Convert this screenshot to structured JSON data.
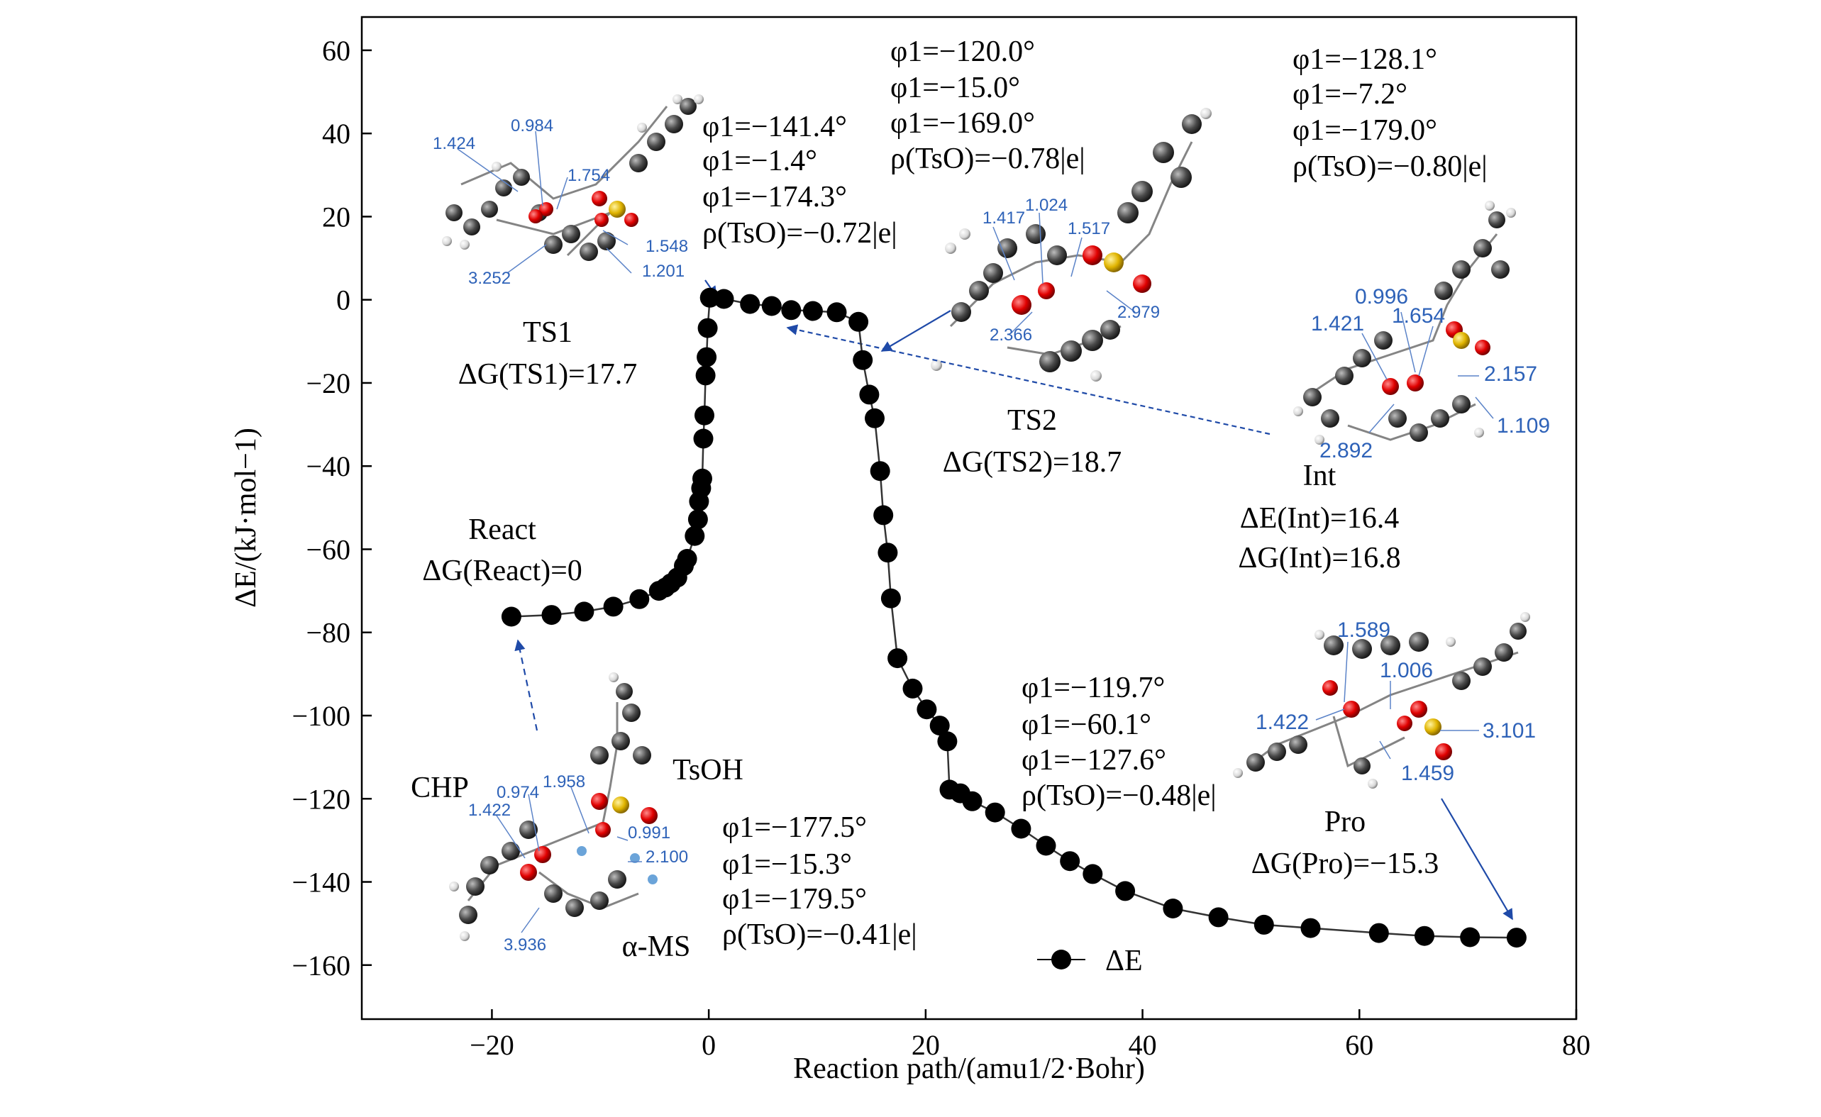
{
  "chart_data": {
    "type": "scatter",
    "title": "",
    "xlabel": "Reaction path/(amu1/2·Bohr)",
    "ylabel": "ΔE/(kJ·mol−1)",
    "xlim": [
      -32,
      80
    ],
    "ylim": [
      -173,
      68
    ],
    "xticks": [
      "−20",
      "0",
      "20",
      "40",
      "60",
      "80"
    ],
    "xtick_values": [
      -20,
      0,
      20,
      40,
      60,
      80
    ],
    "yticks": [
      "60",
      "40",
      "20",
      "0",
      "−20",
      "−40",
      "−60",
      "−80",
      "−100",
      "−120",
      "−140",
      "−160"
    ],
    "ytick_values": [
      60,
      40,
      20,
      0,
      -20,
      -40,
      -60,
      -80,
      -100,
      -120,
      -140,
      -160
    ],
    "legend": {
      "label": "ΔE",
      "position": "bottom-center"
    },
    "series": [
      {
        "name": "ΔE",
        "marker": "filled-circle",
        "color": "#000000",
        "points": [
          [
            -18.2,
            -76.2
          ],
          [
            -14.5,
            -75.8
          ],
          [
            -11.5,
            -75.0
          ],
          [
            -8.8,
            -73.8
          ],
          [
            -6.4,
            -72.0
          ],
          [
            -4.6,
            -70.0
          ],
          [
            -4.0,
            -69.2
          ],
          [
            -3.5,
            -68.2
          ],
          [
            -2.9,
            -66.8
          ],
          [
            -2.3,
            -64.0
          ],
          [
            -2.0,
            -62.3
          ],
          [
            -1.3,
            -56.8
          ],
          [
            -1.0,
            -52.8
          ],
          [
            -0.9,
            -48.5
          ],
          [
            -0.7,
            -45.3
          ],
          [
            -0.6,
            -43.0
          ],
          [
            -0.5,
            -33.4
          ],
          [
            -0.4,
            -27.8
          ],
          [
            -0.3,
            -18.2
          ],
          [
            -0.2,
            -13.8
          ],
          [
            -0.1,
            -6.8
          ],
          [
            0.1,
            0.5
          ],
          [
            1.4,
            0.2
          ],
          [
            3.8,
            -1.0
          ],
          [
            5.8,
            -1.5
          ],
          [
            7.6,
            -2.5
          ],
          [
            9.6,
            -2.7
          ],
          [
            11.8,
            -3.0
          ],
          [
            13.8,
            -5.3
          ],
          [
            14.2,
            -14.5
          ],
          [
            14.8,
            -22.8
          ],
          [
            15.3,
            -28.5
          ],
          [
            15.8,
            -41.2
          ],
          [
            16.1,
            -51.8
          ],
          [
            16.5,
            -60.8
          ],
          [
            16.8,
            -71.8
          ],
          [
            17.4,
            -86.2
          ],
          [
            18.8,
            -93.5
          ],
          [
            20.1,
            -98.5
          ],
          [
            21.3,
            -102.4
          ],
          [
            22.0,
            -106.2
          ],
          [
            22.2,
            -117.8
          ],
          [
            23.2,
            -118.7
          ],
          [
            24.3,
            -120.6
          ],
          [
            26.4,
            -123.3
          ],
          [
            28.8,
            -127.2
          ],
          [
            31.1,
            -131.3
          ],
          [
            33.3,
            -135.0
          ],
          [
            35.4,
            -138.1
          ],
          [
            38.4,
            -142.2
          ],
          [
            42.8,
            -146.4
          ],
          [
            47.0,
            -148.5
          ],
          [
            51.2,
            -150.3
          ],
          [
            55.5,
            -151.1
          ],
          [
            61.8,
            -152.3
          ],
          [
            66.0,
            -153.0
          ],
          [
            70.2,
            -153.3
          ],
          [
            74.5,
            -153.4
          ]
        ]
      }
    ]
  },
  "annotations": {
    "ts1_label": {
      "name": "TS1",
      "energy": "ΔG(TS1)=17.7"
    },
    "ts2_label": {
      "name": "TS2",
      "energy": "ΔG(TS2)=18.7"
    },
    "react_label": {
      "name": "React",
      "energy": "ΔG(React)=0"
    },
    "int_label": {
      "name": "Int",
      "de": "ΔE(Int)=16.4",
      "dg": "ΔG(Int)=16.8"
    },
    "pro_label": {
      "name": "Pro",
      "energy": "ΔG(Pro)=−15.3"
    },
    "ts1_params": [
      "φ1=−141.4°",
      "φ1=−1.4°",
      "φ1=−174.3°",
      "ρ(TsO)=−0.72|e|"
    ],
    "ts2_params": [
      "φ1=−120.0°",
      "φ1=−15.0°",
      "φ1=−169.0°",
      "ρ(TsO)=−0.78|e|"
    ],
    "int_params": [
      "φ1=−128.1°",
      "φ1=−7.2°",
      "φ1=−179.0°",
      "ρ(TsO)=−0.80|e|"
    ],
    "react_params": [
      "φ1=−177.5°",
      "φ1=−15.3°",
      "φ1=−179.5°",
      "ρ(TsO)=−0.41|e|"
    ],
    "pro_params": [
      "φ1=−119.7°",
      "φ1=−60.1°",
      "φ1=−127.6°",
      "ρ(TsO)=−0.48|e|"
    ],
    "react_molecules": {
      "chp": "CHP",
      "tsoh": "TsOH",
      "ams": "α-MS"
    }
  },
  "molecule_labels": {
    "ts1": [
      "1.424",
      "0.984",
      "1.754",
      "1.548",
      "3.252",
      "1.201"
    ],
    "ts2": [
      "1.417",
      "1.024",
      "1.517",
      "2.366",
      "2.979"
    ],
    "int": [
      "0.996",
      "1.421",
      "1.654",
      "2.157",
      "2.892",
      "1.109"
    ],
    "react": [
      "0.974",
      "1.958",
      "1.422",
      "0.991",
      "2.100",
      "3.936"
    ],
    "pro": [
      "1.589",
      "1.006",
      "1.422",
      "3.101",
      "1.459"
    ]
  },
  "colors": {
    "arrow": "#1f4aa8",
    "atom_carbon": "#595959",
    "atom_oxygen": "#e00000",
    "atom_sulfur": "#e0b400",
    "atom_hydrogen": "#e8e8e8"
  }
}
